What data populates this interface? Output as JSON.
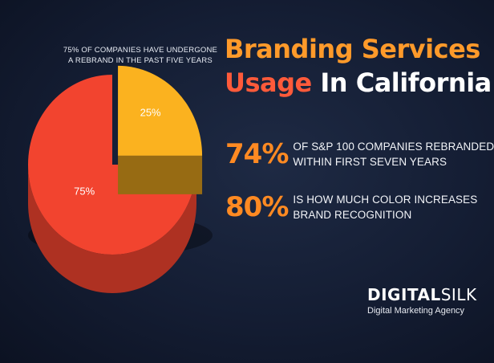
{
  "caption": {
    "line1": "75% OF COMPANIES HAVE UNDERGONE",
    "line2": "A REBRAND IN THE PAST FIVE YEARS"
  },
  "title": {
    "line1": "Branding Services",
    "line2_part1": "Usage",
    "line2_part2": " In California"
  },
  "stats": [
    {
      "value": "74%",
      "line1": "OF S&P 100 COMPANIES REBRANDED",
      "line2": "WITHIN FIRST SEVEN YEARS"
    },
    {
      "value": "80%",
      "line1": "IS HOW MUCH COLOR INCREASES",
      "line2": "BRAND RECOGNITION"
    }
  ],
  "brand": {
    "name_bold": "DIGITAL",
    "name_light": "SILK",
    "tagline": "Digital Marketing Agency"
  },
  "colors": {
    "orange": "#ff8a22",
    "red": "#f2442f",
    "yellow": "#fbb21f"
  },
  "chart_data": {
    "type": "pie",
    "title": "75% OF COMPANIES HAVE UNDERGONE A REBRAND IN THE PAST FIVE YEARS",
    "slices": [
      {
        "label": "75%",
        "value": 75,
        "color": "#f2442f"
      },
      {
        "label": "25%",
        "value": 25,
        "color": "#fbb21f"
      }
    ]
  }
}
